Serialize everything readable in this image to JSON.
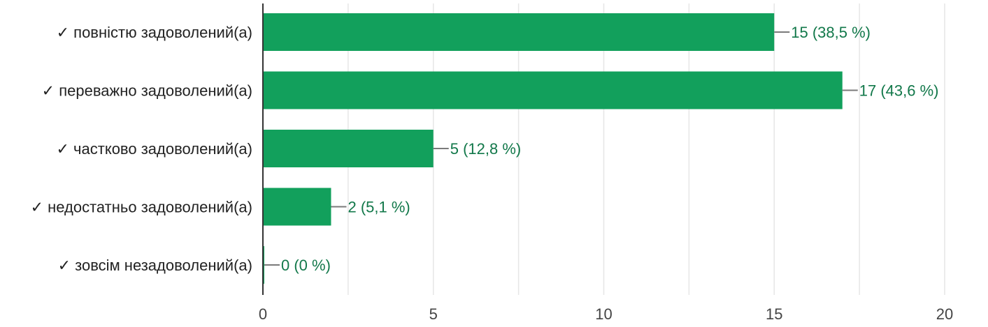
{
  "chart_data": {
    "type": "bar",
    "orientation": "horizontal",
    "categories": [
      "✓ повністю задоволений(а)",
      "✓ переважно задоволений(а)",
      "✓ частково задоволений(а)",
      "✓ недостатньо задоволений(а)",
      "✓ зовсім незадоволений(а)"
    ],
    "values": [
      15,
      17,
      5,
      2,
      0
    ],
    "data_labels": [
      "15 (38,5 %)",
      "17 (43,6 %)",
      "5 (12,8 %)",
      "2 (5,1 %)",
      "0 (0 %)"
    ],
    "xlim": [
      0,
      20
    ],
    "xticks": [
      0,
      5,
      10,
      15,
      20
    ],
    "grid": true,
    "legend": "none",
    "colors": {
      "bar": "#12a05c",
      "data_label": "#12784a",
      "connector": "#7a7a7a",
      "grid": "#e6e6e6",
      "axis": "#333333"
    }
  }
}
